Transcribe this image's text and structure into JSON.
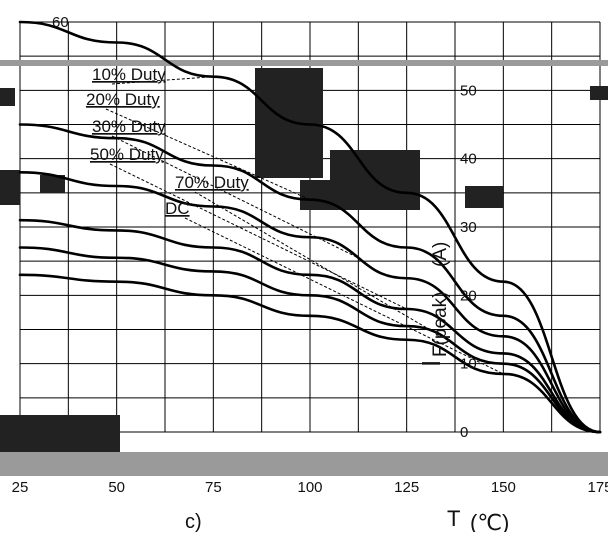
{
  "chart_data": {
    "type": "line",
    "xlabel_symbol": "T",
    "xlabel_unit": "(℃)",
    "ylabel_symbol": "I",
    "ylabel_sub": "F(peak)",
    "ylabel_unit": "(A)",
    "x": [
      25,
      50,
      75,
      100,
      125,
      150,
      175
    ],
    "xticks": [
      "25",
      "50",
      "75",
      "100",
      "125",
      "150",
      "175"
    ],
    "yticks": [
      "0",
      "10",
      "20",
      "30",
      "40",
      "50",
      "60"
    ],
    "xlim": [
      25,
      175
    ],
    "ylim": [
      0,
      60
    ],
    "grid": true,
    "legend": [
      "10% Duty",
      "20% Duty",
      "30% Duty",
      "50% Duty",
      "70% Duty",
      "DC"
    ],
    "series": [
      {
        "name": "10% Duty",
        "values": [
          60,
          57,
          52,
          45,
          35,
          22,
          0
        ]
      },
      {
        "name": "20% Duty",
        "values": [
          45,
          43,
          39,
          34,
          27,
          17,
          0
        ]
      },
      {
        "name": "30% Duty",
        "values": [
          38,
          36,
          33,
          28.5,
          22.5,
          14,
          0
        ]
      },
      {
        "name": "50% Duty",
        "values": [
          31,
          29.5,
          27,
          23,
          18,
          11.5,
          0
        ]
      },
      {
        "name": "70% Duty",
        "values": [
          27,
          25.5,
          23.5,
          20,
          15.5,
          10,
          0
        ]
      },
      {
        "name": "DC",
        "values": [
          23,
          22,
          20,
          17,
          13.5,
          8.5,
          0
        ]
      }
    ],
    "figure_label": "c)"
  }
}
